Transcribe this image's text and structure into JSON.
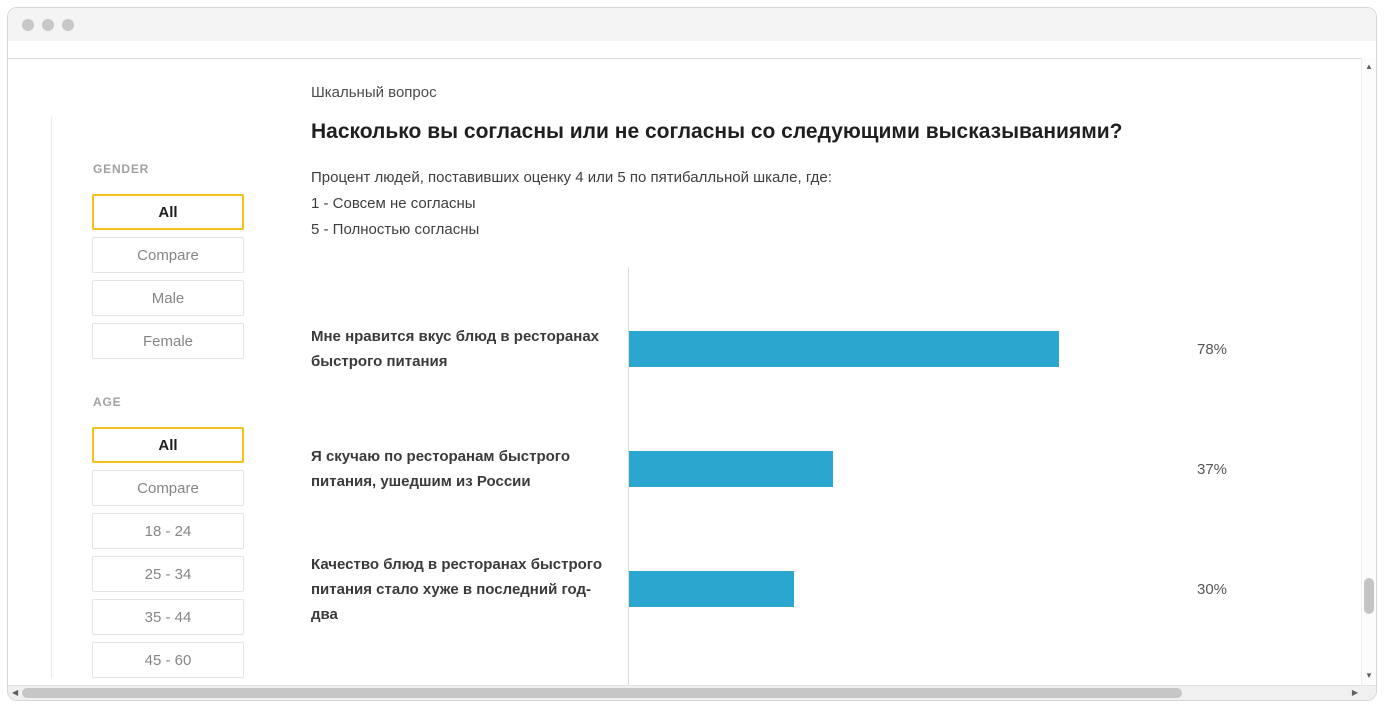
{
  "window": {
    "scroll": {
      "up_arrow": "▲",
      "down_arrow": "▼",
      "left_arrow": "◀",
      "right_arrow": "▶"
    }
  },
  "sidebar": {
    "groups": [
      {
        "label": "GENDER",
        "options": [
          {
            "label": "All",
            "selected": true
          },
          {
            "label": "Compare",
            "selected": false
          },
          {
            "label": "Male",
            "selected": false
          },
          {
            "label": "Female",
            "selected": false
          }
        ]
      },
      {
        "label": "AGE",
        "options": [
          {
            "label": "All",
            "selected": true
          },
          {
            "label": "Compare",
            "selected": false
          },
          {
            "label": "18 - 24",
            "selected": false
          },
          {
            "label": "25 - 34",
            "selected": false
          },
          {
            "label": "35 - 44",
            "selected": false
          },
          {
            "label": "45 - 60",
            "selected": false
          }
        ]
      }
    ]
  },
  "main": {
    "kicker": "Шкальный вопрос",
    "title": "Насколько вы согласны или не согласны со следующими высказываниями?",
    "description": "Процент людей, поставивших оценку 4 или 5 по пятибалльной шкале, где:",
    "scale_lines": [
      "1 - Совсем не согласны",
      "5 - Полностью согласны"
    ]
  },
  "chart_data": {
    "type": "bar",
    "orientation": "horizontal",
    "categories": [
      "Мне нравится вкус блюд в ресторанах быстрого питания",
      "Я скучаю по ресторанам быстрого питания, ушедшим из России",
      "Качество блюд в ресторанах быстрого питания стало хуже в последний год-два"
    ],
    "values": [
      78,
      37,
      30
    ],
    "value_labels": [
      "78%",
      "37%",
      "30%"
    ],
    "xlim": [
      0,
      100
    ],
    "bar_color": "#2aa6cf",
    "grid": false,
    "legend": false
  },
  "colors": {
    "selected_border": "#f3c01c",
    "bar": "#2aa6cf",
    "option_border": "#e4e4e4",
    "titlebar_bg": "#f4f4f4"
  }
}
